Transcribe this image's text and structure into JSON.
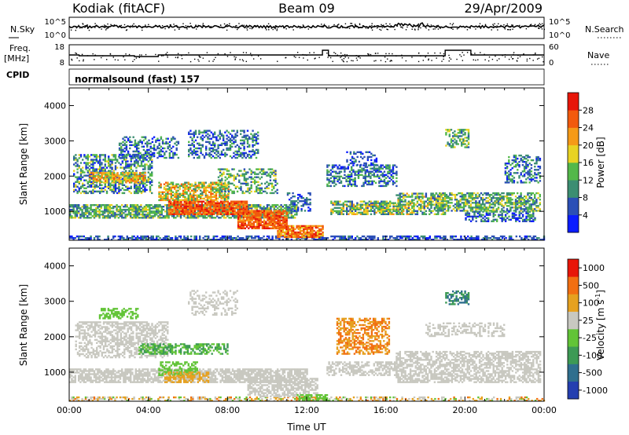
{
  "header": {
    "station": "Kodiak (fitACF)",
    "beam": "Beam 09",
    "date": "29/Apr/2009"
  },
  "noise_panel": {
    "left_label": "N.Sky",
    "right_label": "N.Search",
    "left_ticks": [
      "10^5",
      "10^0"
    ],
    "right_ticks": [
      "10^5",
      "10^0"
    ]
  },
  "freq_panel": {
    "left_label_1": "Freq.",
    "left_label_2": "[MHz]",
    "right_label": "Nave",
    "left_ticks": [
      "18",
      "8"
    ],
    "right_ticks": [
      "60",
      "0"
    ]
  },
  "cpid": {
    "label": "CPID",
    "value": "normalsound (fast) 157"
  },
  "colors": {
    "power_scale": [
      "#0a1cff",
      "#2b4fb6",
      "#3c8e72",
      "#53b84a",
      "#e8d323",
      "#f59a17",
      "#f25a0d",
      "#e81609"
    ],
    "velocity_scale": [
      "#243fb0",
      "#2f6f8e",
      "#3d9a55",
      "#62c437",
      "#c8c8c0",
      "#e6a120",
      "#f26f12",
      "#e81609"
    ]
  },
  "chart_data": [
    {
      "type": "heatmap",
      "parameter": "Power",
      "ylabel": "Slant Range [km]",
      "yticks": [
        1000,
        2000,
        3000,
        4000
      ],
      "ylim": [
        180,
        4500
      ],
      "xlim": [
        0,
        24
      ],
      "colorbar": {
        "label": "Power [dB]",
        "ticks": [
          "4",
          "8",
          "12",
          "16",
          "20",
          "24",
          "28"
        ]
      }
    },
    {
      "type": "heatmap",
      "parameter": "Velocity",
      "ylabel": "Slant Range [km]",
      "yticks": [
        1000,
        2000,
        3000,
        4000
      ],
      "ylim": [
        180,
        4500
      ],
      "xlim": [
        0,
        24
      ],
      "xlabel": "Time UT",
      "xticks": [
        "00:00",
        "04:00",
        "08:00",
        "12:00",
        "16:00",
        "20:00",
        "00:00"
      ],
      "colorbar": {
        "label": "Velocity [m s",
        "label_sup": "-1",
        "label_end": "]",
        "ticks": [
          "1000",
          "500",
          "100",
          "25",
          "-25",
          "-100",
          "-500",
          "-1000"
        ]
      }
    }
  ]
}
